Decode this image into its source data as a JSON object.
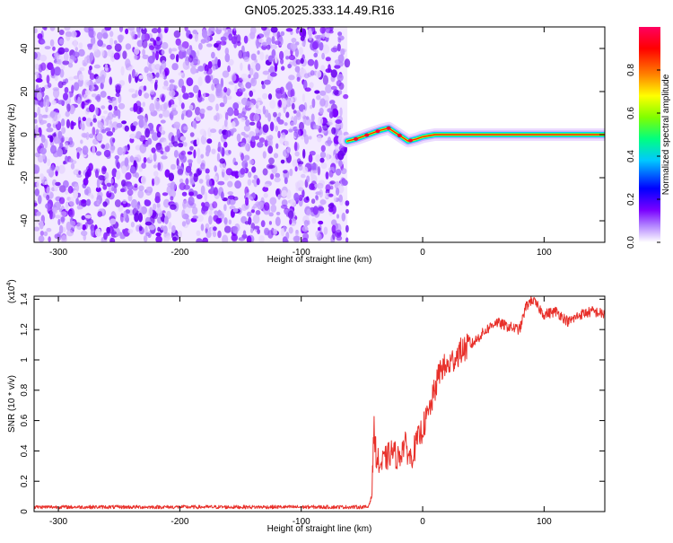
{
  "title": "GN05.2025.333.14.49.R16",
  "chart_data": [
    {
      "type": "heatmap",
      "xlabel": "Height of straight line (km)",
      "ylabel": "Frequency (Hz)",
      "xlim": [
        -320,
        150
      ],
      "ylim": [
        -50,
        50
      ],
      "xticks": [
        -300,
        -200,
        -100,
        0,
        100
      ],
      "yticks": [
        -40,
        -20,
        0,
        20,
        40
      ],
      "grid": false,
      "noise_region_x": [
        -320,
        -62
      ],
      "signal_track": {
        "x": [
          -62,
          -55,
          -45,
          -35,
          -28,
          -20,
          -12,
          -5,
          0,
          10,
          20,
          30,
          150
        ],
        "y": [
          -3,
          -2,
          0,
          2,
          3,
          0,
          -3,
          -2,
          -1,
          0,
          0,
          0,
          0
        ]
      },
      "colorbar": {
        "label": "Normalized spectral amplitude",
        "range": [
          0.0,
          1.0
        ],
        "ticks": [
          0.0,
          0.2,
          0.4,
          0.6,
          0.8
        ],
        "colors": [
          "#ffffff",
          "#7a00ff",
          "#0000ff",
          "#00c8ff",
          "#00ff80",
          "#80ff00",
          "#ffff00",
          "#ff8000",
          "#ff0000",
          "#ff0060"
        ]
      }
    },
    {
      "type": "line",
      "xlabel": "Height of straight line (km)",
      "ylabel": "SNR (10 * v/v)",
      "y_multiplier": "(x10",
      "y_multiplier_exp": "4",
      "y_multiplier_close": ")",
      "xlim": [
        -320,
        150
      ],
      "ylim": [
        0,
        1.42
      ],
      "xticks": [
        -300,
        -200,
        -100,
        0,
        100
      ],
      "yticks": [
        0.0,
        0.2,
        0.4,
        0.6,
        0.8,
        1.0,
        1.2,
        1.4
      ],
      "grid": false,
      "series": [
        {
          "color": "#e8302a",
          "x": [
            -320,
            -200,
            -100,
            -45,
            -42,
            -40,
            -38,
            -35,
            -30,
            -25,
            -20,
            -15,
            -10,
            -5,
            0,
            5,
            10,
            15,
            20,
            30,
            40,
            50,
            60,
            70,
            80,
            85,
            90,
            100,
            110,
            120,
            130,
            140,
            150
          ],
          "y": [
            0.03,
            0.03,
            0.03,
            0.03,
            0.1,
            0.55,
            0.35,
            0.3,
            0.35,
            0.4,
            0.35,
            0.45,
            0.35,
            0.45,
            0.55,
            0.65,
            0.8,
            0.95,
            0.95,
            1.05,
            1.1,
            1.18,
            1.25,
            1.22,
            1.2,
            1.35,
            1.4,
            1.3,
            1.32,
            1.25,
            1.3,
            1.32,
            1.3
          ]
        }
      ]
    }
  ]
}
